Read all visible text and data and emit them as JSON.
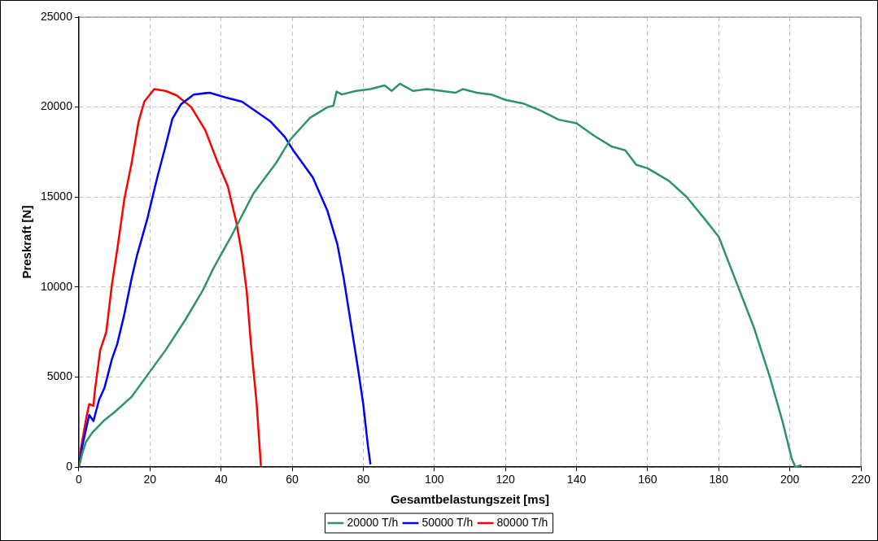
{
  "chart_data": {
    "type": "line",
    "xlabel": "Gesamtbelastungszeit [ms]",
    "ylabel": "Preskraft [N]",
    "xlim": [
      0,
      220
    ],
    "xticks": [
      0,
      20,
      40,
      60,
      80,
      100,
      120,
      140,
      160,
      180,
      200,
      220
    ],
    "ylim": [
      0,
      25000
    ],
    "yticks": [
      0,
      5000,
      10000,
      15000,
      20000,
      25000
    ],
    "grid": true,
    "legend": "bottom",
    "marker": "none",
    "line_style": "solid",
    "series": [
      {
        "name": "20000 T/h",
        "color": "#2e9466",
        "x": [
          0,
          1,
          2,
          3.7,
          6.9,
          10,
          14.8,
          19.6,
          24.4,
          30,
          34.8,
          38,
          42.8,
          49.1,
          55.5,
          59.5,
          65,
          70,
          71.6,
          72.5,
          74,
          78,
          82,
          86,
          88,
          90.3,
          94,
          98,
          102,
          106,
          108,
          112,
          116,
          120,
          125,
          130,
          135,
          140,
          145,
          150,
          153.7,
          156.8,
          160,
          166,
          171,
          176,
          180,
          185.5,
          190,
          194.4,
          198,
          200.5,
          201.6,
          203
        ],
        "values": [
          0,
          800,
          1400,
          1900,
          2560,
          3050,
          3900,
          5200,
          6500,
          8200,
          9800,
          11100,
          12800,
          15200,
          16900,
          18200,
          19400,
          20000,
          20070,
          20860,
          20700,
          20900,
          21000,
          21200,
          20900,
          21300,
          20900,
          21000,
          20900,
          20800,
          21000,
          20800,
          20700,
          20400,
          20200,
          19800,
          19300,
          19100,
          18400,
          17800,
          17600,
          16800,
          16600,
          15900,
          15000,
          13800,
          12800,
          10000,
          7700,
          5000,
          2500,
          500,
          0,
          100
        ]
      },
      {
        "name": "50000 T/h",
        "color": "#0000ff",
        "x": [
          0,
          1,
          2.9,
          4.1,
          5.7,
          7.2,
          9.3,
          10.8,
          12.8,
          14.8,
          16.4,
          19.2,
          22,
          24.4,
          26.3,
          28.7,
          32.3,
          36.8,
          41.9,
          45.9,
          53.9,
          57.9,
          60.3,
          65.8,
          69.9,
          72.7,
          74.5,
          76.5,
          78.5,
          80,
          81.3,
          82
        ],
        "values": [
          0,
          1200,
          2900,
          2560,
          3750,
          4400,
          6000,
          6850,
          8500,
          10450,
          11800,
          13750,
          16050,
          17850,
          19350,
          20150,
          20700,
          20800,
          20500,
          20300,
          19200,
          18350,
          17600,
          16100,
          14250,
          12400,
          10500,
          8000,
          5500,
          3500,
          1200,
          200
        ]
      },
      {
        "name": "80000 T/h",
        "color": "#ff0000",
        "x": [
          0,
          0.5,
          2.1,
          2.9,
          4.1,
          4.5,
          6,
          7.7,
          9.3,
          10.8,
          12.8,
          14.8,
          16.8,
          18.4,
          21.2,
          24.4,
          27.5,
          31.6,
          35.6,
          38.8,
          41.9,
          44.3,
          45.9,
          47.2,
          48.4,
          50,
          51.2
        ],
        "values": [
          0,
          940,
          2760,
          3500,
          3400,
          4240,
          6500,
          7500,
          10150,
          12100,
          14900,
          16860,
          19200,
          20300,
          21000,
          20900,
          20650,
          20000,
          18700,
          17050,
          15600,
          13600,
          11800,
          9800,
          6850,
          3550,
          100
        ]
      }
    ]
  }
}
